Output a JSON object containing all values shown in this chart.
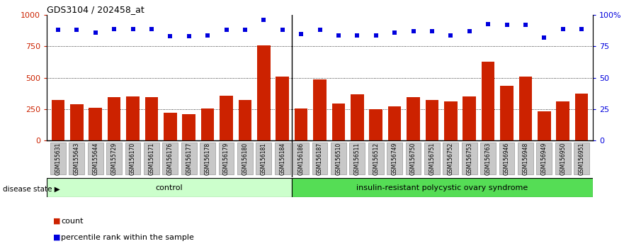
{
  "title": "GDS3104 / 202458_at",
  "samples": [
    "GSM155631",
    "GSM155643",
    "GSM155644",
    "GSM155729",
    "GSM156170",
    "GSM156171",
    "GSM156176",
    "GSM156177",
    "GSM156178",
    "GSM156179",
    "GSM156180",
    "GSM156181",
    "GSM156184",
    "GSM156186",
    "GSM156187",
    "GSM156510",
    "GSM156511",
    "GSM156512",
    "GSM156749",
    "GSM156750",
    "GSM156751",
    "GSM156752",
    "GSM156753",
    "GSM156763",
    "GSM156946",
    "GSM156948",
    "GSM156949",
    "GSM156950",
    "GSM156951"
  ],
  "bar_values": [
    325,
    290,
    260,
    345,
    350,
    345,
    220,
    210,
    255,
    355,
    325,
    760,
    510,
    255,
    490,
    295,
    370,
    250,
    275,
    345,
    325,
    310,
    350,
    630,
    435,
    510,
    235,
    310,
    375
  ],
  "pct_values": [
    88,
    88,
    86,
    89,
    89,
    89,
    83,
    83,
    84,
    88,
    88,
    96,
    88,
    85,
    88,
    84,
    84,
    84,
    86,
    87,
    87,
    84,
    87,
    93,
    92,
    92,
    82,
    89,
    89
  ],
  "control_count": 13,
  "bar_color": "#CC2200",
  "pct_color": "#0000DD",
  "control_bg": "#CCFFCC",
  "disease_bg": "#55DD55",
  "ylim_left": [
    0,
    1000
  ],
  "ylim_right": [
    0,
    100
  ],
  "yticks_left": [
    0,
    250,
    500,
    750,
    1000
  ],
  "yticks_right": [
    0,
    25,
    50,
    75,
    100
  ],
  "ytick_right_labels": [
    "0",
    "25",
    "50",
    "75",
    "100%"
  ],
  "grid_values": [
    250,
    500,
    750
  ],
  "control_label": "control",
  "disease_label": "insulin-resistant polycystic ovary syndrome",
  "disease_state_label": "disease state",
  "legend_count": "count",
  "legend_pct": "percentile rank within the sample",
  "tick_box_color": "#C8C8C8",
  "tick_box_edge": "#999999"
}
